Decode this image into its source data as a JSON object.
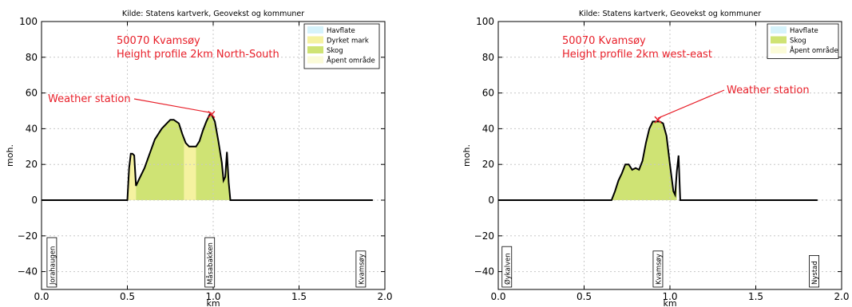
{
  "chart_data": [
    {
      "type": "area",
      "source": "Kilde: Statens kartverk, Geovekst og kommuner",
      "title_lines": [
        "50070 Kvamsøy",
        "Height profile 2km North-South"
      ],
      "xlabel": "km",
      "ylabel": "moh.",
      "xlim": [
        0.0,
        2.0
      ],
      "ylim": [
        -50,
        100
      ],
      "xticks": [
        "0.0",
        "0.5",
        "1.0",
        "1.5",
        "2.0"
      ],
      "yticks": [
        "100",
        "80",
        "60",
        "40",
        "20",
        "0",
        "−20",
        "−40"
      ],
      "grid": true,
      "legend": {
        "position": "top-right",
        "items": [
          {
            "label": "Havflate",
            "color": "#d6f3fb"
          },
          {
            "label": "Dyrket mark",
            "color": "#f5f2a0"
          },
          {
            "label": "Skog",
            "color": "#cfe374"
          },
          {
            "label": "Åpent område",
            "color": "#fbfbd8"
          }
        ]
      },
      "annotation": {
        "text": "Weather station",
        "marker": "x",
        "x": 0.99,
        "y": 48
      },
      "places": [
        {
          "label": "Jorahaugen",
          "x": 0.06
        },
        {
          "label": "Måsabakken",
          "x": 0.98
        },
        {
          "label": "Kvamsøy",
          "x": 1.86
        }
      ],
      "x": [
        0.0,
        0.5,
        0.51,
        0.52,
        0.53,
        0.54,
        0.55,
        0.57,
        0.6,
        0.63,
        0.66,
        0.7,
        0.73,
        0.75,
        0.77,
        0.8,
        0.82,
        0.84,
        0.86,
        0.88,
        0.9,
        0.92,
        0.94,
        0.96,
        0.98,
        0.99,
        1.01,
        1.03,
        1.05,
        1.06,
        1.07,
        1.08,
        1.09,
        1.1,
        1.11,
        1.93
      ],
      "y": [
        0,
        0,
        18,
        26,
        26,
        25,
        8,
        12,
        18,
        26,
        34,
        40,
        43,
        45,
        45,
        43,
        37,
        32,
        30,
        30,
        30,
        33,
        39,
        44,
        48,
        48,
        44,
        33,
        21,
        11,
        13,
        27,
        10,
        0,
        0,
        0
      ],
      "land_cover": [
        {
          "class": "Dyrket mark",
          "from": 0.5,
          "to": 0.55
        },
        {
          "class": "Skog",
          "from": 0.55,
          "to": 0.83
        },
        {
          "class": "Dyrket mark",
          "from": 0.83,
          "to": 0.9
        },
        {
          "class": "Skog",
          "from": 0.9,
          "to": 1.1
        }
      ]
    },
    {
      "type": "area",
      "source": "Kilde: Statens kartverk, Geovekst og kommuner",
      "title_lines": [
        "50070 Kvamsøy",
        "Height profile 2km west-east"
      ],
      "xlabel": "km",
      "ylabel": "moh.",
      "xlim": [
        0.0,
        2.0
      ],
      "ylim": [
        -50,
        100
      ],
      "xticks": [
        "0.0",
        "0.5",
        "1.0",
        "1.5",
        "2.0"
      ],
      "yticks": [
        "100",
        "80",
        "60",
        "40",
        "20",
        "0",
        "−20",
        "−40"
      ],
      "grid": true,
      "legend": {
        "position": "top-right",
        "items": [
          {
            "label": "Havflate",
            "color": "#d6f3fb"
          },
          {
            "label": "Skog",
            "color": "#cfe374"
          },
          {
            "label": "Åpent område",
            "color": "#fbfbd8"
          }
        ]
      },
      "annotation": {
        "text": "Weather station",
        "marker": "x",
        "x": 0.93,
        "y": 45
      },
      "places": [
        {
          "label": "Øykalven",
          "x": 0.05
        },
        {
          "label": "Kvamsøy",
          "x": 0.93
        },
        {
          "label": "Nystad",
          "x": 1.84
        }
      ],
      "x": [
        0.0,
        0.66,
        0.68,
        0.7,
        0.72,
        0.74,
        0.76,
        0.78,
        0.8,
        0.82,
        0.84,
        0.86,
        0.88,
        0.9,
        0.92,
        0.94,
        0.96,
        0.98,
        1.0,
        1.02,
        1.03,
        1.04,
        1.05,
        1.06,
        1.07,
        1.86
      ],
      "y": [
        0,
        0,
        5,
        11,
        15,
        20,
        20,
        17,
        18,
        17,
        22,
        32,
        40,
        44,
        44,
        44,
        43,
        36,
        20,
        5,
        3,
        16,
        25,
        0,
        0,
        0
      ],
      "land_cover": [
        {
          "class": "Skog",
          "from": 0.66,
          "to": 1.04
        }
      ]
    }
  ]
}
